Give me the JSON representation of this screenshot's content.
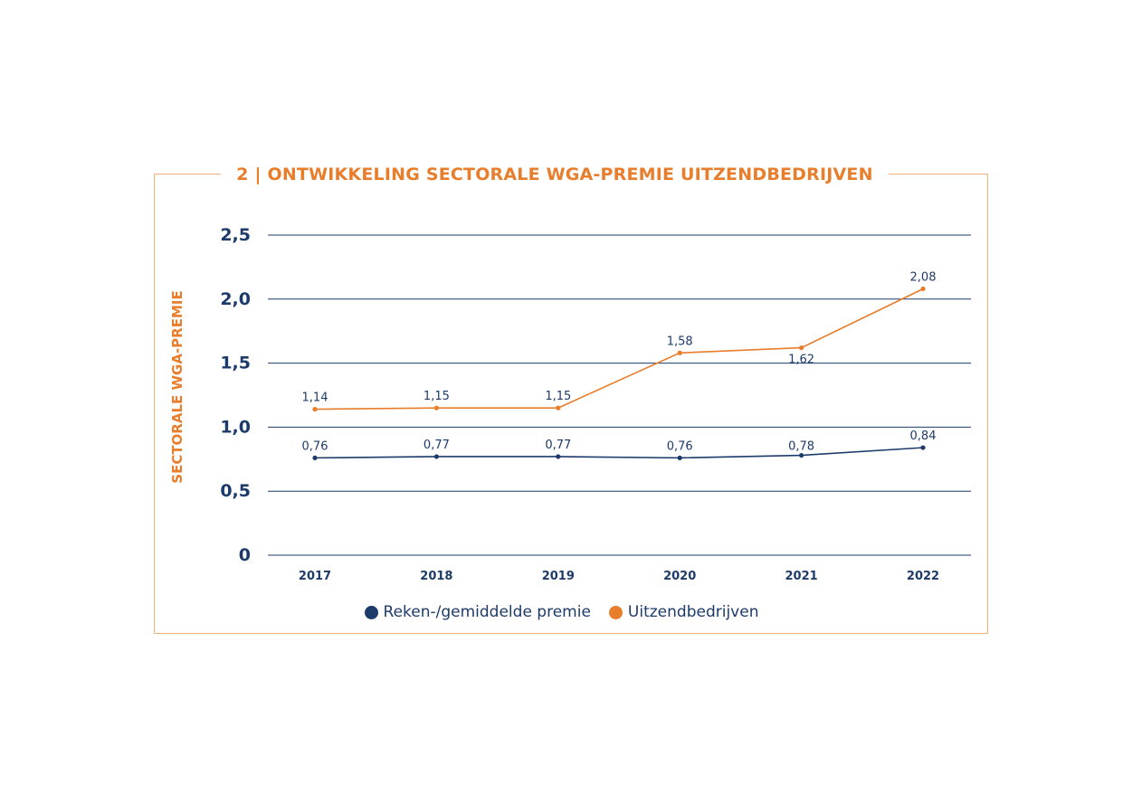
{
  "title": "2 | ONTWIKKELING SECTORALE WGA-PREMIE UITZENDBEDRIJVEN",
  "chart_data": {
    "type": "line",
    "title": "2 | ONTWIKKELING SECTORALE WGA-PREMIE UITZENDBEDRIJVEN",
    "xlabel": "",
    "ylabel": "SECTORALE WGA-PREMIE",
    "categories": [
      "2017",
      "2018",
      "2019",
      "2020",
      "2021",
      "2022"
    ],
    "ylim": [
      0,
      2.5
    ],
    "yticks": [
      0,
      0.5,
      1.0,
      1.5,
      2.0,
      2.5
    ],
    "ytick_labels": [
      "0",
      "0,5",
      "1,0",
      "1,5",
      "2,0",
      "2,5"
    ],
    "grid": true,
    "legend_position": "bottom-center",
    "series": [
      {
        "name": "Reken-/gemiddelde premie",
        "color": "#1d3b6a",
        "values": [
          0.76,
          0.77,
          0.77,
          0.76,
          0.78,
          0.84
        ],
        "labels": [
          "0,76",
          "0,77",
          "0,77",
          "0,76",
          "0,78",
          "0,84"
        ]
      },
      {
        "name": "Uitzendbedrijven",
        "color": "#e87d2b",
        "values": [
          1.14,
          1.15,
          1.15,
          1.58,
          1.62,
          2.08
        ],
        "labels": [
          "1,14",
          "1,15",
          "1,15",
          "1,58",
          "1,62",
          "2,08"
        ]
      }
    ]
  }
}
